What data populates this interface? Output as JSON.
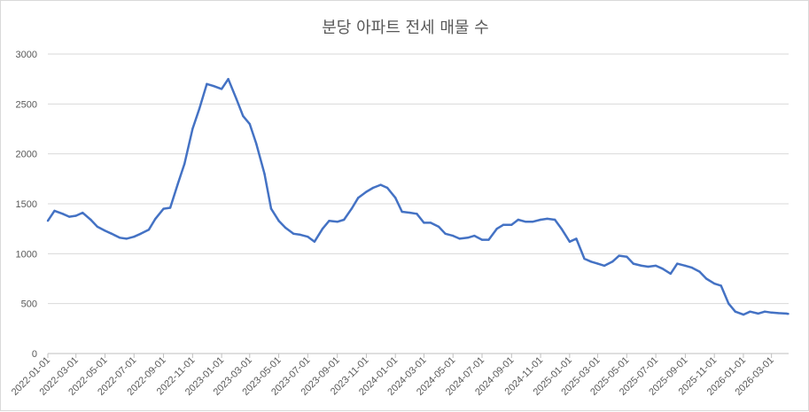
{
  "chart_data": {
    "type": "line",
    "title": "분당 아파트 전세 매물 수",
    "xlabel": "",
    "ylabel": "",
    "ylim": [
      0,
      3000
    ],
    "yticks": [
      0,
      500,
      1000,
      1500,
      2000,
      2500,
      3000
    ],
    "xticks": [
      "2022-01-01",
      "2022-03-01",
      "2022-05-01",
      "2022-07-01",
      "2022-09-01",
      "2022-11-01",
      "2023-01-01",
      "2023-03-01",
      "2023-05-01",
      "2023-07-01",
      "2023-09-01",
      "2023-11-01",
      "2024-01-01",
      "2024-03-01",
      "2024-05-01",
      "2024-07-01",
      "2024-09-01",
      "2024-11-01",
      "2025-01-01",
      "2025-03-01",
      "2025-05-01",
      "2025-07-01",
      "2025-09-01",
      "2025-11-01",
      "2026-01-01",
      "2026-03-01"
    ],
    "grid": true,
    "legend": "none",
    "series_color": "#4472c4",
    "x": [
      "2022-01-01",
      "2022-01-15",
      "2022-02-01",
      "2022-02-15",
      "2022-03-01",
      "2022-03-15",
      "2022-04-01",
      "2022-04-15",
      "2022-05-01",
      "2022-05-15",
      "2022-06-01",
      "2022-06-15",
      "2022-07-01",
      "2022-07-15",
      "2022-08-01",
      "2022-08-15",
      "2022-09-01",
      "2022-09-15",
      "2022-10-01",
      "2022-10-15",
      "2022-11-01",
      "2022-11-15",
      "2022-12-01",
      "2022-12-15",
      "2023-01-01",
      "2023-01-15",
      "2023-02-01",
      "2023-02-15",
      "2023-03-01",
      "2023-03-15",
      "2023-04-01",
      "2023-04-15",
      "2023-05-01",
      "2023-05-15",
      "2023-06-01",
      "2023-06-15",
      "2023-07-01",
      "2023-07-15",
      "2023-08-01",
      "2023-08-15",
      "2023-09-01",
      "2023-09-15",
      "2023-10-01",
      "2023-10-15",
      "2023-11-01",
      "2023-11-15",
      "2023-12-01",
      "2023-12-15",
      "2024-01-01",
      "2024-01-15",
      "2024-02-01",
      "2024-02-15",
      "2024-03-01",
      "2024-03-15",
      "2024-04-01",
      "2024-04-15",
      "2024-05-01",
      "2024-05-15",
      "2024-06-01",
      "2024-06-15",
      "2024-07-01",
      "2024-07-15",
      "2024-08-01",
      "2024-08-15",
      "2024-09-01",
      "2024-09-15",
      "2024-10-01",
      "2024-10-15",
      "2024-11-01",
      "2024-11-15",
      "2024-12-01",
      "2024-12-15",
      "2025-01-01",
      "2025-01-15",
      "2025-02-01",
      "2025-02-15",
      "2025-03-01",
      "2025-03-15",
      "2025-04-01",
      "2025-04-15",
      "2025-05-01",
      "2025-05-15",
      "2025-06-01",
      "2025-06-15",
      "2025-07-01",
      "2025-07-15",
      "2025-08-01",
      "2025-08-15",
      "2025-09-01",
      "2025-09-15",
      "2025-10-01",
      "2025-10-15",
      "2025-11-01",
      "2025-11-15",
      "2025-12-01",
      "2025-12-15",
      "2026-01-01",
      "2026-01-15",
      "2026-02-01",
      "2026-02-15",
      "2026-03-01",
      "2026-03-15",
      "2026-04-01",
      "2026-04-05"
    ],
    "values": [
      1330,
      1430,
      1400,
      1370,
      1380,
      1410,
      1340,
      1270,
      1230,
      1200,
      1160,
      1150,
      1170,
      1200,
      1240,
      1350,
      1450,
      1460,
      1700,
      1900,
      2250,
      2450,
      2700,
      2680,
      2650,
      2750,
      2550,
      2380,
      2300,
      2100,
      1800,
      1450,
      1330,
      1260,
      1200,
      1190,
      1170,
      1120,
      1250,
      1330,
      1320,
      1340,
      1450,
      1560,
      1620,
      1660,
      1690,
      1660,
      1560,
      1420,
      1410,
      1400,
      1310,
      1310,
      1270,
      1200,
      1180,
      1150,
      1160,
      1180,
      1140,
      1140,
      1250,
      1290,
      1290,
      1340,
      1320,
      1320,
      1340,
      1350,
      1340,
      1250,
      1120,
      1150,
      950,
      920,
      900,
      880,
      920,
      980,
      970,
      900,
      880,
      870,
      880,
      850,
      800,
      900,
      880,
      860,
      820,
      750,
      700,
      680,
      500,
      420,
      390,
      420,
      400,
      420,
      410,
      405,
      400,
      398
    ]
  }
}
